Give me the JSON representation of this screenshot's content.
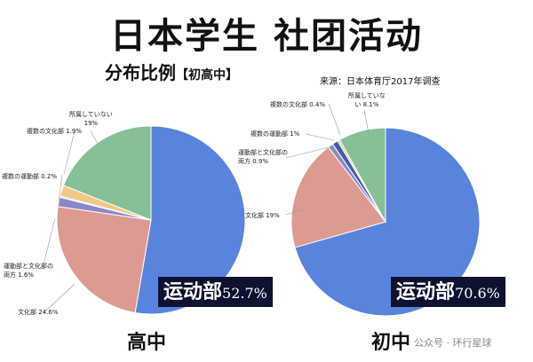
{
  "title": "日本学生 社团活动",
  "subtitle": "分布比例",
  "subtitle_bracket": "【初高中】",
  "source": "来源：日本体育厅2017年调查",
  "watermark": "公众号 · 环行星球",
  "chart_data": [
    {
      "type": "pie",
      "name": "高中",
      "slices": [
        {
          "label": "运动部",
          "value": 52.7,
          "color": "#5a83dd"
        },
        {
          "label": "文化部",
          "value": 24.6,
          "color": "#dc9a92"
        },
        {
          "label": "運動部と文化部の両方",
          "value": 1.6,
          "color": "#8a88c8"
        },
        {
          "label": "複数の運動部",
          "value": 0.2,
          "color": "#3e5fa8"
        },
        {
          "label": "複数の文化部",
          "value": 1.9,
          "color": "#efc98a"
        },
        {
          "label": "所属していない",
          "value": 19,
          "color": "#86bf98"
        }
      ],
      "labels": {
        "main_name": "运动部",
        "main_value": "52.7%",
        "culture": "文化部 24.6%",
        "both_1": "運動部と文化部の",
        "both_2": "両方 1.6%",
        "multi_sport": "複数の運動部 0.2%",
        "multi_culture": "複数の文化部 1.9%",
        "none_1": "所属していない",
        "none_2": "19%"
      }
    },
    {
      "type": "pie",
      "name": "初中",
      "slices": [
        {
          "label": "运动部",
          "value": 70.6,
          "color": "#5a83dd"
        },
        {
          "label": "文化部",
          "value": 19,
          "color": "#dc9a92"
        },
        {
          "label": "運動部と文化部の両方",
          "value": 0.9,
          "color": "#8a88c8"
        },
        {
          "label": "複数の運動部",
          "value": 1,
          "color": "#3e5fa8"
        },
        {
          "label": "複数の文化部",
          "value": 0.4,
          "color": "#efc98a"
        },
        {
          "label": "所属していない",
          "value": 8.1,
          "color": "#86bf98"
        }
      ],
      "labels": {
        "main_name": "运动部",
        "main_value": "70.6%",
        "culture": "文化部 19%",
        "both_1": "運動部と文化部の",
        "both_2": "両方 0.9%",
        "multi_sport": "複数の運動部 1%",
        "multi_culture": "複数の文化部 0.4%",
        "none_1": "所属していな",
        "none_2": "い 8.1%"
      }
    }
  ]
}
